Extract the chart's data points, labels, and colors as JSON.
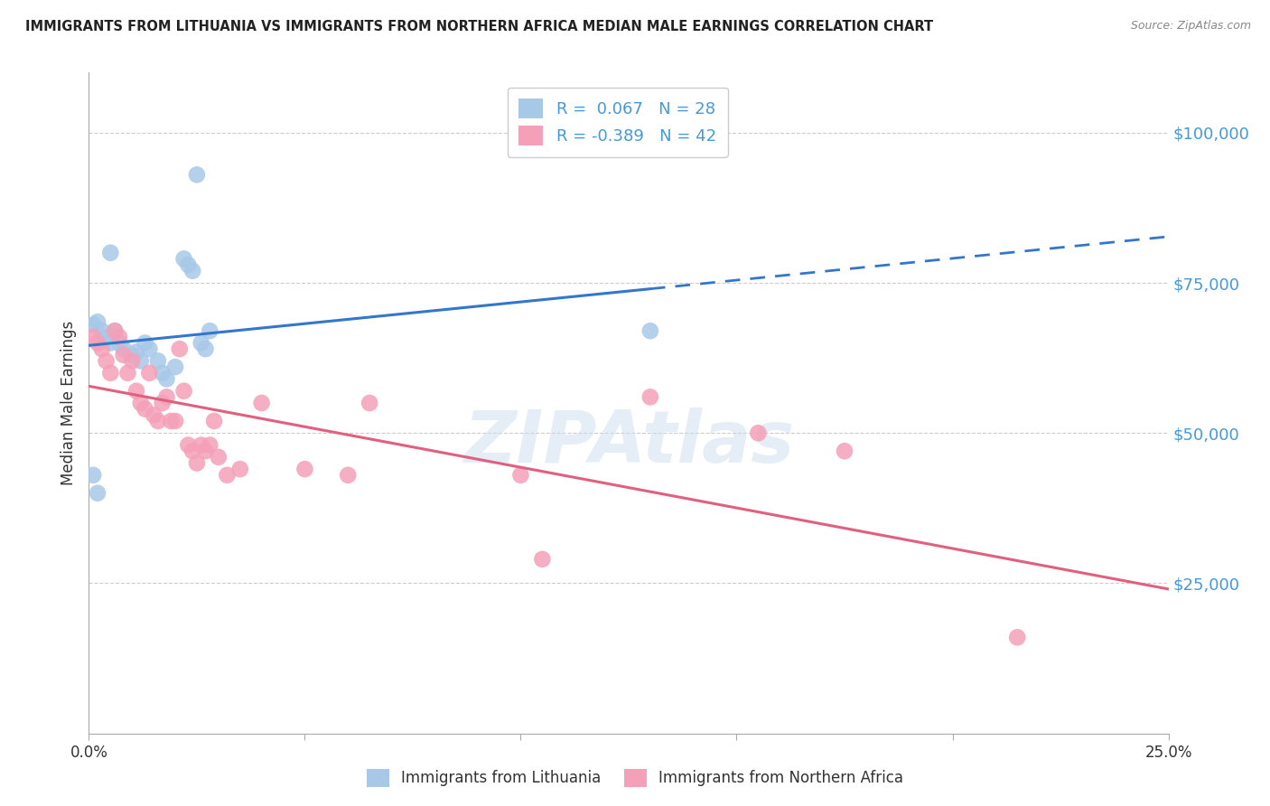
{
  "title": "IMMIGRANTS FROM LITHUANIA VS IMMIGRANTS FROM NORTHERN AFRICA MEDIAN MALE EARNINGS CORRELATION CHART",
  "source": "Source: ZipAtlas.com",
  "ylabel": "Median Male Earnings",
  "xlim": [
    0.0,
    0.25
  ],
  "ylim": [
    0,
    110000
  ],
  "yticks": [
    25000,
    50000,
    75000,
    100000
  ],
  "ytick_labels": [
    "$25,000",
    "$50,000",
    "$75,000",
    "$100,000"
  ],
  "xticks": [
    0.0,
    0.05,
    0.1,
    0.15,
    0.2,
    0.25
  ],
  "xtick_labels": [
    "0.0%",
    "",
    "",
    "",
    "",
    "25.0%"
  ],
  "background_color": "#ffffff",
  "grid_color": "#cccccc",
  "lithuania_color": "#a8c8e8",
  "northern_africa_color": "#f4a0b8",
  "lithuania_line_color": "#3377cc",
  "northern_africa_line_color": "#e06080",
  "right_label_color": "#4499dd",
  "R_lithuania": "0.067",
  "N_lithuania": "28",
  "R_northern_africa": "-0.389",
  "N_northern_africa": "42",
  "watermark": "ZIPAtlas",
  "lith_line_solid_end": 0.13,
  "lithuania_x": [
    0.001,
    0.002,
    0.003,
    0.004,
    0.005,
    0.006,
    0.007,
    0.008,
    0.01,
    0.011,
    0.012,
    0.013,
    0.014,
    0.016,
    0.017,
    0.018,
    0.02,
    0.022,
    0.023,
    0.024,
    0.025,
    0.026,
    0.027,
    0.028,
    0.001,
    0.002,
    0.13,
    0.005
  ],
  "lithuania_y": [
    68000,
    68500,
    67000,
    66000,
    65000,
    67000,
    65000,
    64000,
    63000,
    63500,
    62000,
    65000,
    64000,
    62000,
    60000,
    59000,
    61000,
    79000,
    78000,
    77000,
    93000,
    65000,
    64000,
    67000,
    43000,
    40000,
    67000,
    80000
  ],
  "northern_africa_x": [
    0.001,
    0.002,
    0.003,
    0.004,
    0.005,
    0.006,
    0.007,
    0.008,
    0.009,
    0.01,
    0.011,
    0.012,
    0.013,
    0.014,
    0.015,
    0.016,
    0.017,
    0.018,
    0.019,
    0.02,
    0.021,
    0.022,
    0.023,
    0.024,
    0.025,
    0.026,
    0.027,
    0.028,
    0.029,
    0.03,
    0.032,
    0.035,
    0.04,
    0.05,
    0.06,
    0.065,
    0.1,
    0.105,
    0.13,
    0.155,
    0.175,
    0.215
  ],
  "northern_africa_y": [
    66000,
    65000,
    64000,
    62000,
    60000,
    67000,
    66000,
    63000,
    60000,
    62000,
    57000,
    55000,
    54000,
    60000,
    53000,
    52000,
    55000,
    56000,
    52000,
    52000,
    64000,
    57000,
    48000,
    47000,
    45000,
    48000,
    47000,
    48000,
    52000,
    46000,
    43000,
    44000,
    55000,
    44000,
    43000,
    55000,
    43000,
    29000,
    56000,
    50000,
    47000,
    16000
  ]
}
